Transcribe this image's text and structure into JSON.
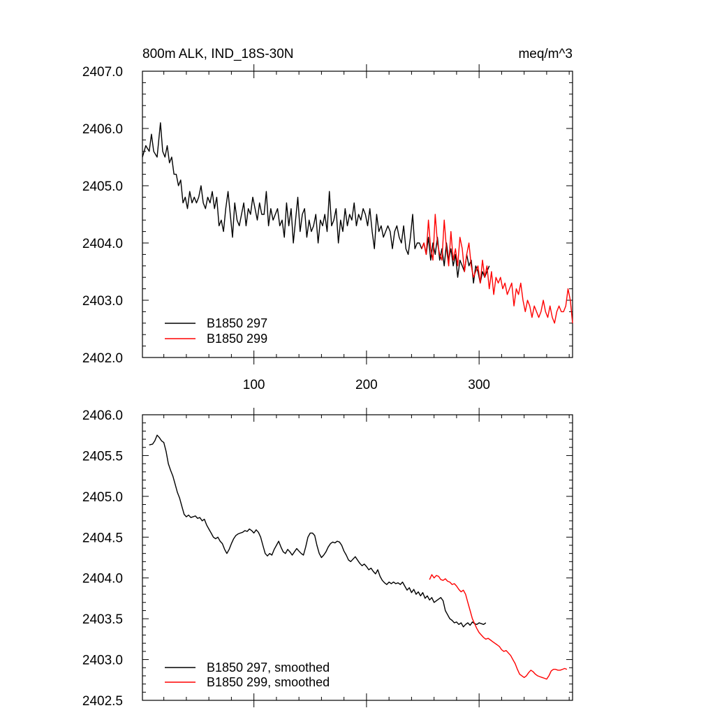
{
  "chart_data": [
    {
      "type": "line",
      "title_left": "800m ALK, IND_18S-30N",
      "title_right": "meq/m^3",
      "xlim": [
        1,
        383
      ],
      "ylim": [
        2402.0,
        2407.0
      ],
      "y_ticks": [
        "2402.0",
        "2403.0",
        "2404.0",
        "2405.0",
        "2406.0",
        "2407.0"
      ],
      "x_ticks": [
        "100",
        "200",
        "300"
      ],
      "x_tick_values": [
        100,
        200,
        300
      ],
      "legend_position": "bottom-left",
      "series": [
        {
          "name": "B1850 297",
          "color": "#000000",
          "x": [
            1,
            4,
            7,
            9,
            11,
            14,
            17,
            19,
            21,
            23,
            25,
            27,
            29,
            31,
            33,
            35,
            37,
            39,
            41,
            43,
            45,
            47,
            49,
            51,
            53,
            55,
            57,
            59,
            61,
            63,
            65,
            67,
            69,
            71,
            73,
            75,
            77,
            79,
            81,
            83,
            85,
            87,
            89,
            91,
            93,
            95,
            97,
            99,
            101,
            103,
            105,
            107,
            109,
            111,
            113,
            115,
            117,
            119,
            121,
            123,
            125,
            127,
            129,
            131,
            133,
            135,
            137,
            139,
            141,
            143,
            145,
            147,
            149,
            151,
            153,
            155,
            157,
            159,
            161,
            163,
            165,
            167,
            169,
            171,
            173,
            175,
            177,
            179,
            181,
            183,
            185,
            187,
            189,
            191,
            193,
            195,
            197,
            199,
            201,
            203,
            205,
            207,
            209,
            211,
            213,
            215,
            217,
            219,
            221,
            223,
            225,
            227,
            229,
            231,
            233,
            235,
            237,
            239,
            241,
            243,
            245,
            247,
            249,
            251,
            253,
            255,
            257,
            259,
            261,
            263,
            265,
            267,
            269,
            271,
            273,
            275,
            277,
            279,
            281,
            283,
            285,
            287,
            289,
            291,
            293,
            295,
            297,
            299,
            301,
            303,
            305,
            307,
            309
          ],
          "y": [
            2405.5,
            2405.7,
            2405.6,
            2405.9,
            2405.6,
            2405.5,
            2406.1,
            2405.6,
            2405.5,
            2405.7,
            2405.4,
            2405.5,
            2405.2,
            2405.2,
            2405.0,
            2405.1,
            2404.7,
            2404.8,
            2404.6,
            2404.9,
            2404.7,
            2404.8,
            2404.7,
            2404.8,
            2405.0,
            2404.7,
            2404.6,
            2404.8,
            2404.7,
            2404.9,
            2404.6,
            2404.8,
            2404.3,
            2404.4,
            2404.2,
            2404.6,
            2404.9,
            2404.5,
            2404.1,
            2404.7,
            2404.4,
            2404.3,
            2404.5,
            2404.7,
            2404.3,
            2404.6,
            2404.5,
            2404.8,
            2404.6,
            2404.4,
            2404.7,
            2404.5,
            2404.5,
            2404.9,
            2404.3,
            2404.6,
            2404.4,
            2404.5,
            2404.6,
            2404.3,
            2404.4,
            2404.1,
            2404.7,
            2404.3,
            2404.6,
            2404.0,
            2404.4,
            2404.8,
            2404.2,
            2404.5,
            2404.6,
            2404.1,
            2404.4,
            2404.2,
            2404.3,
            2404.5,
            2404.0,
            2404.4,
            2404.3,
            2404.5,
            2404.2,
            2404.9,
            2404.3,
            2404.4,
            2404.6,
            2404.0,
            2404.4,
            2404.2,
            2404.6,
            2404.3,
            2404.5,
            2404.4,
            2404.7,
            2404.3,
            2404.5,
            2404.4,
            2404.6,
            2404.5,
            2404.3,
            2404.6,
            2404.2,
            2403.9,
            2404.5,
            2404.2,
            2404.3,
            2404.1,
            2404.2,
            2404.3,
            2404.2,
            2403.9,
            2404.2,
            2404.3,
            2404.1,
            2404.0,
            2404.3,
            2403.9,
            2403.8,
            2404.1,
            2404.5,
            2403.9,
            2404.0,
            2404.0,
            2403.9,
            2404.0,
            2403.8,
            2404.1,
            2403.7,
            2404.0,
            2403.8,
            2404.1,
            2403.7,
            2403.9,
            2403.6,
            2404.0,
            2403.7,
            2403.9,
            2403.6,
            2403.8,
            2403.4,
            2403.7,
            2403.6,
            2403.5,
            2403.8,
            2403.6,
            2403.7,
            2403.3,
            2403.6,
            2403.5,
            2403.3,
            2403.5,
            2403.4,
            2403.5,
            2403.6
          ]
        },
        {
          "name": "B1850 299",
          "color": "#ff0000",
          "x": [
            249,
            251,
            253,
            255,
            257,
            259,
            261,
            263,
            265,
            267,
            269,
            271,
            273,
            275,
            277,
            279,
            281,
            283,
            285,
            287,
            289,
            291,
            293,
            295,
            297,
            299,
            301,
            303,
            305,
            307,
            309,
            311,
            313,
            315,
            317,
            319,
            321,
            323,
            325,
            327,
            329,
            331,
            333,
            335,
            337,
            339,
            341,
            343,
            345,
            347,
            349,
            351,
            353,
            355,
            357,
            359,
            361,
            363,
            365,
            367,
            369,
            371,
            373,
            375,
            377,
            379,
            381,
            383
          ],
          "y": [
            2403.9,
            2404.0,
            2403.8,
            2404.4,
            2403.9,
            2403.7,
            2404.5,
            2404.0,
            2403.8,
            2403.7,
            2404.4,
            2403.9,
            2403.6,
            2404.2,
            2403.7,
            2403.9,
            2403.6,
            2404.1,
            2403.9,
            2403.5,
            2403.8,
            2404.0,
            2403.6,
            2403.4,
            2403.5,
            2403.6,
            2403.3,
            2403.7,
            2403.4,
            2403.6,
            2403.2,
            2403.5,
            2403.1,
            2403.4,
            2403.3,
            2403.4,
            2403.2,
            2403.3,
            2403.1,
            2403.2,
            2403.3,
            2402.9,
            2403.2,
            2403.1,
            2403.3,
            2403.0,
            2402.8,
            2403.0,
            2402.9,
            2402.7,
            2402.9,
            2402.8,
            2402.7,
            2402.8,
            2403.0,
            2402.8,
            2402.7,
            2402.9,
            2402.7,
            2402.6,
            2402.8,
            2402.9,
            2402.8,
            2402.8,
            2402.9,
            2403.2,
            2403.0,
            2402.6
          ]
        }
      ]
    },
    {
      "type": "line",
      "xlim": [
        1,
        383
      ],
      "ylim": [
        2402.5,
        2406.0
      ],
      "y_ticks": [
        "2402.5",
        "2403.0",
        "2403.5",
        "2404.0",
        "2404.5",
        "2405.0",
        "2405.5",
        "2406.0"
      ],
      "x_tick_values": [
        100,
        200,
        300
      ],
      "legend_position": "bottom-left",
      "series": [
        {
          "name": "B1850 297, smoothed",
          "color": "#000000",
          "x": [
            7,
            10,
            12,
            14,
            16,
            18,
            20,
            22,
            24,
            26,
            28,
            30,
            32,
            34,
            36,
            38,
            40,
            42,
            44,
            46,
            48,
            50,
            52,
            54,
            56,
            58,
            60,
            62,
            64,
            66,
            68,
            70,
            72,
            74,
            76,
            78,
            80,
            82,
            84,
            86,
            88,
            90,
            92,
            94,
            96,
            98,
            100,
            102,
            104,
            106,
            108,
            110,
            112,
            114,
            116,
            118,
            120,
            122,
            124,
            126,
            128,
            130,
            132,
            134,
            136,
            138,
            140,
            142,
            144,
            146,
            148,
            150,
            152,
            154,
            156,
            158,
            160,
            162,
            164,
            166,
            168,
            170,
            172,
            174,
            176,
            178,
            180,
            182,
            184,
            186,
            188,
            190,
            192,
            194,
            196,
            198,
            200,
            202,
            204,
            206,
            208,
            210,
            212,
            214,
            216,
            218,
            220,
            222,
            224,
            226,
            228,
            230,
            232,
            234,
            236,
            238,
            240,
            242,
            244,
            246,
            248,
            250,
            252,
            254,
            256,
            258,
            260,
            262,
            264,
            266,
            268,
            270,
            272,
            274,
            276,
            278,
            280,
            282,
            284,
            286,
            288,
            290,
            292,
            294,
            296,
            298,
            300,
            302,
            304,
            306
          ],
          "y": [
            2405.63,
            2405.64,
            2405.68,
            2405.75,
            2405.72,
            2405.68,
            2405.66,
            2405.55,
            2405.4,
            2405.32,
            2405.25,
            2405.15,
            2405.05,
            2404.98,
            2404.88,
            2404.78,
            2404.75,
            2404.77,
            2404.74,
            2404.75,
            2404.76,
            2404.73,
            2404.74,
            2404.7,
            2404.72,
            2404.65,
            2404.6,
            2404.55,
            2404.5,
            2404.48,
            2404.5,
            2404.45,
            2404.42,
            2404.35,
            2404.3,
            2404.35,
            2404.42,
            2404.48,
            2404.52,
            2404.54,
            2404.55,
            2404.56,
            2404.58,
            2404.57,
            2404.6,
            2404.58,
            2404.55,
            2404.59,
            2404.56,
            2404.5,
            2404.4,
            2404.3,
            2404.27,
            2404.3,
            2404.28,
            2404.35,
            2404.4,
            2404.45,
            2404.38,
            2404.32,
            2404.3,
            2404.35,
            2404.32,
            2404.28,
            2404.32,
            2404.36,
            2404.33,
            2404.3,
            2404.28,
            2404.38,
            2404.5,
            2404.55,
            2404.55,
            2404.52,
            2404.4,
            2404.3,
            2404.25,
            2404.28,
            2404.32,
            2404.38,
            2404.42,
            2404.44,
            2404.43,
            2404.45,
            2404.44,
            2404.4,
            2404.33,
            2404.28,
            2404.22,
            2404.2,
            2404.23,
            2404.26,
            2404.22,
            2404.18,
            2404.15,
            2404.17,
            2404.14,
            2404.1,
            2404.12,
            2404.08,
            2404.05,
            2404.1,
            2404.02,
            2403.97,
            2403.94,
            2403.92,
            2403.95,
            2403.93,
            2403.95,
            2403.93,
            2403.94,
            2403.92,
            2403.95,
            2403.9,
            2403.85,
            2403.88,
            2403.82,
            2403.86,
            2403.8,
            2403.83,
            2403.78,
            2403.82,
            2403.75,
            2403.78,
            2403.73,
            2403.76,
            2403.7,
            2403.72,
            2403.74,
            2403.76,
            2403.72,
            2403.6,
            2403.55,
            2403.5,
            2403.48,
            2403.45,
            2403.46,
            2403.43,
            2403.45,
            2403.4,
            2403.43,
            2403.45,
            2403.42,
            2403.46,
            2403.44,
            2403.43,
            2403.45,
            2403.44,
            2403.43,
            2403.45
          ]
        },
        {
          "name": "B1850 299, smoothed",
          "color": "#ff0000",
          "x": [
            256,
            258,
            260,
            262,
            264,
            266,
            268,
            270,
            272,
            274,
            276,
            278,
            280,
            282,
            284,
            286,
            288,
            290,
            292,
            294,
            296,
            298,
            300,
            302,
            304,
            306,
            308,
            310,
            312,
            314,
            316,
            318,
            320,
            322,
            324,
            326,
            328,
            330,
            332,
            334,
            336,
            338,
            340,
            342,
            344,
            346,
            348,
            350,
            352,
            354,
            356,
            358,
            360,
            362,
            364,
            366,
            368,
            370,
            372,
            374,
            376,
            378
          ],
          "y": [
            2403.98,
            2404.04,
            2404.0,
            2404.03,
            2404.02,
            2403.98,
            2403.97,
            2403.99,
            2403.96,
            2403.95,
            2403.92,
            2403.93,
            2403.9,
            2403.86,
            2403.83,
            2403.85,
            2403.8,
            2403.7,
            2403.6,
            2403.5,
            2403.44,
            2403.38,
            2403.33,
            2403.3,
            2403.27,
            2403.25,
            2403.26,
            2403.24,
            2403.22,
            2403.2,
            2403.18,
            2403.16,
            2403.12,
            2403.1,
            2403.11,
            2403.08,
            2403.05,
            2403.0,
            2402.95,
            2402.88,
            2402.82,
            2402.8,
            2402.78,
            2402.8,
            2402.84,
            2402.87,
            2402.85,
            2402.82,
            2402.8,
            2402.79,
            2402.78,
            2402.77,
            2402.76,
            2402.8,
            2402.86,
            2402.88,
            2402.88,
            2402.87,
            2402.87,
            2402.88,
            2402.89,
            2402.88
          ]
        }
      ]
    }
  ]
}
